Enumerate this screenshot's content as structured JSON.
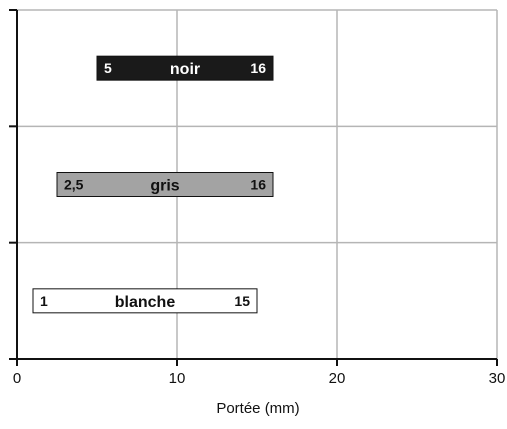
{
  "chart_data": {
    "type": "bar",
    "orientation": "horizontal",
    "title": "",
    "xlabel": "Portée (mm)",
    "ylabel": "",
    "xlim": [
      0,
      30
    ],
    "x_ticks": [
      "0",
      "10",
      "20",
      "30"
    ],
    "grid": true,
    "categories": [
      "noir",
      "gris",
      "blanche"
    ],
    "series": [
      {
        "values": [
          {
            "category": "noir",
            "min": 5,
            "max": 16,
            "min_label": "5",
            "max_label": "16",
            "fill": "#1a1a1a",
            "text_color": "#ffffff"
          },
          {
            "category": "gris",
            "min": 2.5,
            "max": 16,
            "min_label": "2,5",
            "max_label": "16",
            "fill": "#a3a3a3",
            "text_color": "#111111"
          },
          {
            "category": "blanche",
            "min": 1,
            "max": 15,
            "min_label": "1",
            "max_label": "15",
            "fill": "#ffffff",
            "text_color": "#111111"
          }
        ]
      }
    ]
  },
  "colors": {
    "grid": "#b5b5b5",
    "axis": "#111111"
  }
}
